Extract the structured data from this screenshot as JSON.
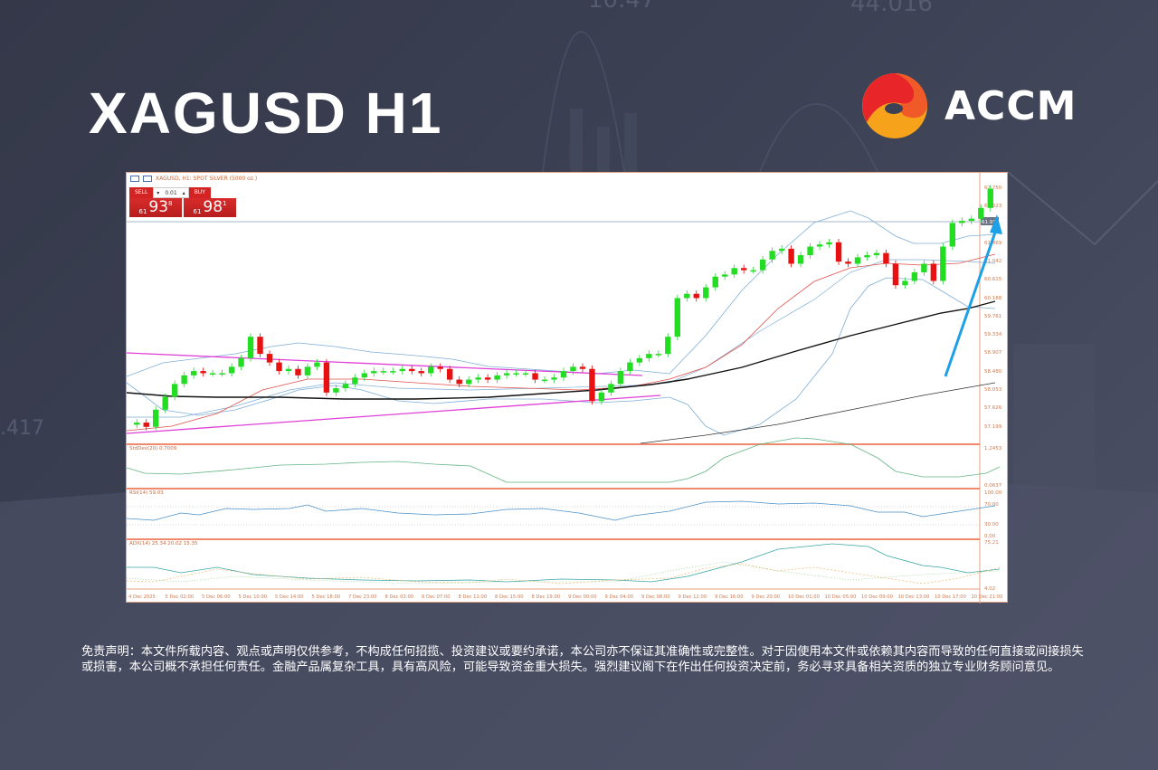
{
  "header": {
    "title": "XAGUSD H1",
    "brand": "ACCM",
    "brand_colors": [
      "#e8262a",
      "#f05a28",
      "#f7a21b"
    ]
  },
  "terminal": {
    "symbol_label": "XAGUSD, H1:  SPOT SILVER (5000 oz.)",
    "sell_label": "SELL",
    "buy_label": "BUY",
    "lot_value": "0.01",
    "sell_price": {
      "prefix": "61",
      "big": "93",
      "sup": "8"
    },
    "buy_price": {
      "prefix": "61",
      "big": "98",
      "sup": "1"
    }
  },
  "chart_data": [
    {
      "type": "candlestick",
      "title": "XAGUSD, H1: SPOT SILVER (5000 oz.)",
      "ylim": [
        56.9,
        62.95
      ],
      "y_ticks": [
        "62.750",
        "62.323",
        "61.896",
        "61.469",
        "61.042",
        "60.615",
        "60.188",
        "59.761",
        "59.334",
        "58.907",
        "58.480",
        "58.053",
        "57.626",
        "57.199"
      ],
      "current_price_label": "61.938",
      "x_labels": [
        "4 Dec 2025",
        "5 Dec 02:00",
        "5 Dec 06:00",
        "5 Dec 10:00",
        "5 Dec 14:00",
        "5 Dec 18:00",
        "7 Dec 23:00",
        "8 Dec 03:00",
        "8 Dec 07:00",
        "8 Dec 11:00",
        "8 Dec 15:00",
        "8 Dec 19:00",
        "9 Dec 00:00",
        "9 Dec 04:00",
        "9 Dec 08:00",
        "9 Dec 12:00",
        "9 Dec 16:00",
        "9 Dec 20:00",
        "10 Dec 01:00",
        "10 Dec 05:00",
        "10 Dec 09:00",
        "10 Dec 13:00",
        "10 Dec 17:00",
        "10 Dec 21:00"
      ],
      "indicators": [
        "Bollinger Bands (20)",
        "Moving Average (red)",
        "Moving Average (black)",
        "Moving Average long (black thin)"
      ],
      "annotations": [
        "Symmetrical triangle (magenta trendlines)",
        "Blue upward arrow"
      ],
      "approx_close_path": [
        57.3,
        57.2,
        57.6,
        57.9,
        58.2,
        58.4,
        58.5,
        58.45,
        58.45,
        58.45,
        58.6,
        58.8,
        59.3,
        58.9,
        58.7,
        58.5,
        58.55,
        58.4,
        58.6,
        58.7,
        58.0,
        58.1,
        58.2,
        58.35,
        58.45,
        58.5,
        58.5,
        58.5,
        58.55,
        58.5,
        58.45,
        58.6,
        58.55,
        58.3,
        58.2,
        58.3,
        58.35,
        58.3,
        58.4,
        58.45,
        58.45,
        58.45,
        58.3,
        58.3,
        58.35,
        58.5,
        58.6,
        58.55,
        57.8,
        58.0,
        58.2,
        58.5,
        58.7,
        58.8,
        58.9,
        58.9,
        59.3,
        60.2,
        60.3,
        60.2,
        60.45,
        60.7,
        60.75,
        60.9,
        60.85,
        60.85,
        61.1,
        61.3,
        61.35,
        61.0,
        61.2,
        61.4,
        61.45,
        61.5,
        61.05,
        61.0,
        61.15,
        61.2,
        61.25,
        61.0,
        60.5,
        60.6,
        60.8,
        61.0,
        60.6,
        61.4,
        61.95,
        62.0,
        62.05,
        62.3,
        62.75
      ]
    },
    {
      "type": "line",
      "title": "StdDev(20) 0.7009",
      "y_ticks": [
        "1.2453",
        "0.0637"
      ],
      "series": [
        {
          "name": "StdDev(20)",
          "color": "#62b483"
        }
      ]
    },
    {
      "type": "line",
      "title": "RSI(14) 59.03",
      "y_ticks": [
        "100.00",
        "70.00",
        "30.00",
        "0.00"
      ],
      "series": [
        {
          "name": "RSI(14)",
          "color": "#4a90c8"
        }
      ]
    },
    {
      "type": "line",
      "title": "ADX(14) 25.34 20.02 15.35",
      "y_ticks": [
        "75.21",
        "4.02"
      ],
      "series": [
        {
          "name": "ADX",
          "color": "#3aa6a6"
        },
        {
          "name": "+DI",
          "color": "#7fc97f"
        },
        {
          "name": "-DI",
          "color": "#f4b96a"
        }
      ]
    }
  ],
  "panels": {
    "stddev_label": "StdDev(20) 0.7009",
    "rsi_label": "RSI(14) 59.03",
    "adx_label": "ADX(14) 25.34 20.02 15.35"
  },
  "disclaimer": "免责声明：本文件所载内容、观点或声明仅供参考，不构成任何招揽、投资建议或要约承诺，本公司亦不保证其准确性或完整性。对于因使用本文件或依赖其内容而导致的任何直接或间接损失或损害，本公司概不承担任何责任。金融产品属复杂工具，具有高风险，可能导致资金重大损失。强烈建议阁下在作出任何投资决定前，务必寻求具备相关资质的独立专业财务顾问意见。"
}
